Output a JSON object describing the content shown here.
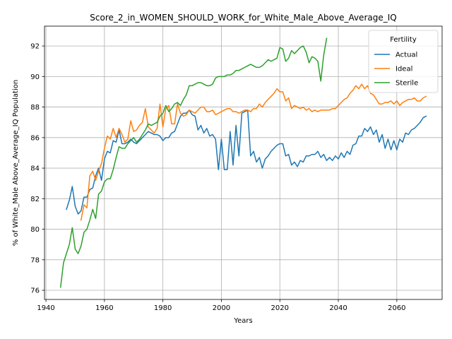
{
  "chart_data": {
    "type": "line",
    "title": "Score_2_in_WOMEN_SHOULD_WORK_for_White_Male_Above_Average_IQ",
    "xlabel": "Years",
    "ylabel": "% of White_Male Above_Average_IQ Population",
    "xlim": [
      1939.5,
      2075.5
    ],
    "ylim": [
      75.4,
      93.3
    ],
    "xticks": [
      1940,
      1960,
      1980,
      2000,
      2020,
      2040,
      2060
    ],
    "yticks": [
      76,
      78,
      80,
      82,
      84,
      86,
      88,
      90,
      92
    ],
    "grid": true,
    "legend": {
      "title": "Fertility",
      "placement": "top-right"
    },
    "series": [
      {
        "name": "Actual",
        "color": "#1f77b4",
        "x": [
          1947,
          1948,
          1949,
          1950,
          1951,
          1952,
          1953,
          1954,
          1955,
          1956,
          1957,
          1958,
          1959,
          1960,
          1961,
          1962,
          1963,
          1964,
          1965,
          1966,
          1967,
          1968,
          1969,
          1970,
          1971,
          1972,
          1973,
          1974,
          1975,
          1976,
          1977,
          1978,
          1979,
          1980,
          1981,
          1982,
          1983,
          1984,
          1985,
          1986,
          1987,
          1988,
          1989,
          1990,
          1991,
          1992,
          1993,
          1994,
          1995,
          1996,
          1997,
          1998,
          1999,
          2000,
          2001,
          2002,
          2003,
          2004,
          2005,
          2006,
          2007,
          2008,
          2009,
          2010,
          2011,
          2012,
          2013,
          2014,
          2015,
          2016,
          2017,
          2018,
          2019,
          2020,
          2021,
          2022,
          2023,
          2024,
          2025,
          2026,
          2027,
          2028,
          2029,
          2030,
          2031,
          2032,
          2033,
          2034,
          2035,
          2036,
          2037,
          2038,
          2039,
          2040,
          2041,
          2042,
          2043,
          2044,
          2045,
          2046,
          2047,
          2048,
          2049,
          2050,
          2051,
          2052,
          2053,
          2054,
          2055,
          2056,
          2057,
          2058,
          2059,
          2060,
          2061,
          2062,
          2063,
          2064,
          2065,
          2066,
          2067,
          2068,
          2069,
          2070
        ],
        "values": [
          81.3,
          81.9,
          82.8,
          81.5,
          81.0,
          81.2,
          82.1,
          82.1,
          82.6,
          82.7,
          83.5,
          84.0,
          83.2,
          84.6,
          85.1,
          85.0,
          85.8,
          85.7,
          86.5,
          85.6,
          85.6,
          85.7,
          85.9,
          85.7,
          85.6,
          85.8,
          86.0,
          86.2,
          86.4,
          86.3,
          86.2,
          86.2,
          86.1,
          85.8,
          86.0,
          86.0,
          86.3,
          86.4,
          86.9,
          87.4,
          87.6,
          87.6,
          87.8,
          87.5,
          87.4,
          86.5,
          86.8,
          86.3,
          86.6,
          86.1,
          86.2,
          85.9,
          83.9,
          85.9,
          83.9,
          83.9,
          86.4,
          84.2,
          86.8,
          84.8,
          87.6,
          87.7,
          87.8,
          84.8,
          85.1,
          84.4,
          84.7,
          84.0,
          84.6,
          84.8,
          85.1,
          85.3,
          85.5,
          85.6,
          85.6,
          84.8,
          84.9,
          84.2,
          84.4,
          84.1,
          84.5,
          84.4,
          84.8,
          84.8,
          84.9,
          84.9,
          85.1,
          84.7,
          84.9,
          84.5,
          84.7,
          84.5,
          84.8,
          84.6,
          85.0,
          84.7,
          85.1,
          84.9,
          85.5,
          85.6,
          86.1,
          86.1,
          86.6,
          86.4,
          86.7,
          86.2,
          86.5,
          85.7,
          86.2,
          85.3,
          85.9,
          85.2,
          85.8,
          85.2,
          85.9,
          85.7,
          86.3,
          86.2,
          86.5,
          86.6,
          86.8,
          87.0,
          87.3,
          87.4
        ]
      },
      {
        "name": "Ideal",
        "color": "#ff7f0e",
        "x": [
          1952,
          1953,
          1954,
          1955,
          1956,
          1957,
          1958,
          1959,
          1960,
          1961,
          1962,
          1963,
          1964,
          1965,
          1966,
          1967,
          1968,
          1969,
          1970,
          1971,
          1972,
          1973,
          1974,
          1975,
          1976,
          1977,
          1978,
          1979,
          1980,
          1981,
          1982,
          1983,
          1984,
          1985,
          1986,
          1987,
          1988,
          1989,
          1990,
          1991,
          1992,
          1993,
          1994,
          1995,
          1996,
          1997,
          1998,
          1999,
          2000,
          2001,
          2002,
          2003,
          2004,
          2005,
          2006,
          2007,
          2008,
          2009,
          2010,
          2011,
          2012,
          2013,
          2014,
          2015,
          2016,
          2017,
          2018,
          2019,
          2020,
          2021,
          2022,
          2023,
          2024,
          2025,
          2026,
          2027,
          2028,
          2029,
          2030,
          2031,
          2032,
          2033,
          2034,
          2035,
          2036,
          2037,
          2038,
          2039,
          2040,
          2041,
          2042,
          2043,
          2044,
          2045,
          2046,
          2047,
          2048,
          2049,
          2050,
          2051,
          2052,
          2053,
          2054,
          2055,
          2056,
          2057,
          2058,
          2059,
          2060,
          2061,
          2062,
          2063,
          2064,
          2065,
          2066,
          2067,
          2068,
          2069,
          2070
        ],
        "values": [
          80.6,
          81.6,
          81.4,
          83.5,
          83.8,
          83.2,
          83.8,
          84.3,
          85.3,
          86.1,
          85.9,
          86.6,
          86.0,
          86.6,
          86.2,
          85.7,
          85.9,
          87.1,
          86.4,
          86.5,
          86.8,
          87.0,
          87.9,
          86.7,
          86.5,
          86.3,
          86.6,
          88.2,
          86.7,
          87.9,
          88.1,
          86.9,
          86.9,
          88.2,
          87.6,
          87.4,
          87.5,
          87.8,
          87.7,
          87.6,
          87.8,
          88.0,
          88.0,
          87.7,
          87.7,
          87.8,
          87.5,
          87.6,
          87.7,
          87.8,
          87.9,
          87.9,
          87.7,
          87.7,
          87.6,
          87.7,
          87.8,
          87.8,
          87.7,
          87.9,
          87.9,
          88.2,
          88.0,
          88.3,
          88.5,
          88.7,
          88.9,
          89.2,
          89.0,
          89.0,
          88.4,
          88.6,
          87.9,
          88.1,
          88.0,
          87.9,
          88.0,
          87.8,
          87.9,
          87.7,
          87.8,
          87.7,
          87.8,
          87.8,
          87.8,
          87.8,
          87.9,
          87.9,
          88.1,
          88.3,
          88.5,
          88.6,
          88.9,
          89.1,
          89.4,
          89.2,
          89.5,
          89.2,
          89.4,
          88.9,
          88.8,
          88.5,
          88.2,
          88.2,
          88.3,
          88.3,
          88.4,
          88.2,
          88.4,
          88.1,
          88.3,
          88.4,
          88.5,
          88.5,
          88.6,
          88.4,
          88.4,
          88.6,
          88.7
        ]
      },
      {
        "name": "Sterile",
        "color": "#2ca02c",
        "x": [
          1945,
          1946,
          1947,
          1948,
          1949,
          1950,
          1951,
          1952,
          1953,
          1954,
          1955,
          1956,
          1957,
          1958,
          1959,
          1960,
          1961,
          1962,
          1963,
          1964,
          1965,
          1966,
          1967,
          1968,
          1969,
          1970,
          1971,
          1972,
          1973,
          1974,
          1975,
          1976,
          1977,
          1978,
          1979,
          1980,
          1981,
          1982,
          1983,
          1984,
          1985,
          1986,
          1987,
          1988,
          1989,
          1990,
          1991,
          1992,
          1993,
          1994,
          1995,
          1996,
          1997,
          1998,
          1999,
          2000,
          2001,
          2002,
          2003,
          2004,
          2005,
          2006,
          2007,
          2008,
          2009,
          2010,
          2011,
          2012,
          2013,
          2014,
          2015,
          2016,
          2017,
          2018,
          2019,
          2020,
          2021,
          2022,
          2023,
          2024,
          2025,
          2026,
          2027,
          2028,
          2029,
          2030,
          2031,
          2032,
          2033,
          2034,
          2035,
          2036
        ],
        "values": [
          76.2,
          77.8,
          78.4,
          79.0,
          80.1,
          78.7,
          78.4,
          78.9,
          79.8,
          80.0,
          80.6,
          81.3,
          80.7,
          82.3,
          82.5,
          83.1,
          83.3,
          83.3,
          83.9,
          84.7,
          85.4,
          85.3,
          85.3,
          85.6,
          85.8,
          86.0,
          85.7,
          85.9,
          86.2,
          86.5,
          86.9,
          86.8,
          86.9,
          87.0,
          87.4,
          87.6,
          88.1,
          87.7,
          87.9,
          88.2,
          88.3,
          88.1,
          88.5,
          88.8,
          89.4,
          89.4,
          89.5,
          89.6,
          89.6,
          89.5,
          89.4,
          89.4,
          89.5,
          89.9,
          90.0,
          90.0,
          90.0,
          90.1,
          90.1,
          90.2,
          90.4,
          90.4,
          90.5,
          90.6,
          90.7,
          90.8,
          90.7,
          90.6,
          90.6,
          90.7,
          90.9,
          91.1,
          91.0,
          91.1,
          91.2,
          91.9,
          91.8,
          91.0,
          91.2,
          91.7,
          91.5,
          91.7,
          91.9,
          92.0,
          91.6,
          90.9,
          91.3,
          91.2,
          91.0,
          89.7,
          91.4,
          92.5
        ]
      }
    ]
  }
}
